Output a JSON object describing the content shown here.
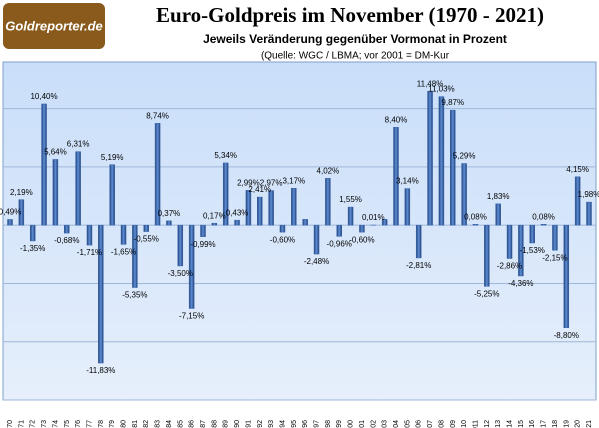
{
  "logo": "Goldreporter.de",
  "chart_data": {
    "type": "bar",
    "title": "Euro-Goldpreis im November (1970 - 2021)",
    "subtitle": "Jeweils Veränderung gegenüber Vormonat in Prozent",
    "source": "(Quelle: WGC / LBMA; vor 2001 = DM-Kur",
    "categories": [
      "1970",
      "1971",
      "1972",
      "1973",
      "1974",
      "1975",
      "1976",
      "1977",
      "1978",
      "1979",
      "1980",
      "1981",
      "1982",
      "1983",
      "1984",
      "1985",
      "1986",
      "1987",
      "1988",
      "1989",
      "1990",
      "1991",
      "1992",
      "1993",
      "1994",
      "1995",
      "1996",
      "1997",
      "1998",
      "1999",
      "2000",
      "2001",
      "2002",
      "2003",
      "2004",
      "2005",
      "2006",
      "2007",
      "2008",
      "2009",
      "2010",
      "2011",
      "2012",
      "2013",
      "2014",
      "2015",
      "2016",
      "2017",
      "2018",
      "2019",
      "2020",
      "2021"
    ],
    "values": [
      0.49,
      2.19,
      -1.35,
      10.4,
      5.64,
      -0.68,
      6.31,
      -1.71,
      -11.83,
      5.19,
      -1.65,
      -5.35,
      -0.55,
      8.74,
      0.37,
      -3.5,
      -7.15,
      -0.99,
      0.17,
      5.34,
      0.43,
      2.99,
      2.41,
      2.97,
      -0.6,
      3.17,
      0.5,
      -2.48,
      4.02,
      -0.96,
      1.55,
      -0.6,
      0.01,
      0.5,
      8.4,
      3.14,
      -2.81,
      11.48,
      11.03,
      9.87,
      5.29,
      0.08,
      -5.25,
      1.83,
      -2.86,
      -4.36,
      -1.53,
      0.08,
      -2.15,
      -8.8,
      4.15,
      1.98
    ],
    "value_labels": [
      "0,49%",
      "2,19%",
      "-1,35%",
      "10,40%",
      "5,64%",
      "-0,68%",
      "6,31%",
      "-1,71%",
      "-11,83%",
      "5,19%",
      "-1,65%",
      "-5,35%",
      "-0,55%",
      "8,74%",
      "0,37%",
      "-3,50%",
      "-7,15%",
      "-0,99%",
      "0,17%",
      "5,34%",
      "0,43%",
      "2,99%",
      "2,41%",
      "2,97%",
      "-0,60%",
      "3,17%",
      null,
      "-2,48%",
      "4,02%",
      "-0,96%",
      "1,55%",
      "-0,60%",
      "0,01%",
      null,
      "8,40%",
      "3,14%",
      "-2,81%",
      "11,48%",
      "11,03%",
      "9,87%",
      "5,29%",
      "0,08%",
      "-5,25%",
      "1,83%",
      "-2,86%",
      "-4,36%",
      "-1,53%",
      "0,08%",
      "-2,15%",
      "-8,80%",
      "4,15%",
      "1,98%"
    ],
    "color": "#3a64a8",
    "ylim": [
      -15,
      14
    ],
    "yticks": [
      -15,
      -10,
      -5,
      0,
      5,
      10
    ],
    "grid": true
  }
}
